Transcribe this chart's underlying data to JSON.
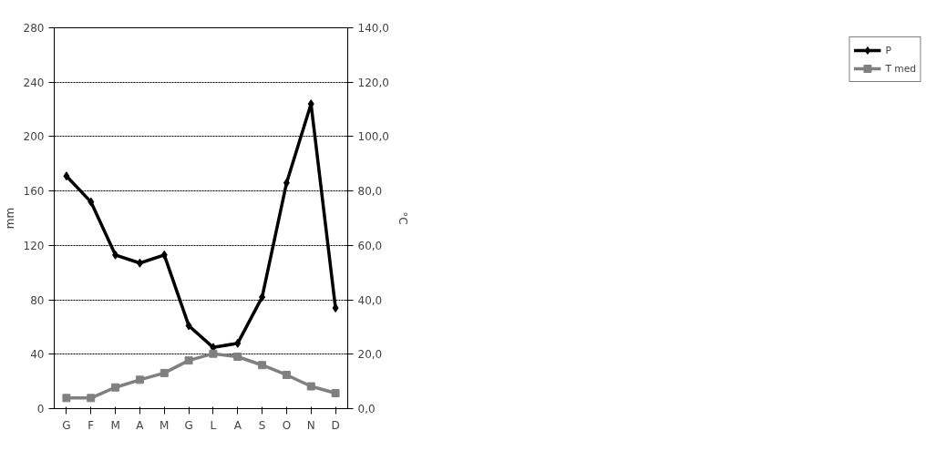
{
  "chart_data": {
    "type": "line",
    "ylabel": "mm",
    "y2label": "°C",
    "categories": [
      "G",
      "F",
      "M",
      "A",
      "M",
      "G",
      "L",
      "A",
      "S",
      "O",
      "N",
      "D"
    ],
    "series": [
      {
        "name": "P",
        "color": "#000000",
        "marker": "diamond",
        "values": [
          171,
          152,
          113,
          107,
          113,
          61,
          45,
          48,
          82,
          166,
          224,
          74
        ]
      },
      {
        "name": "T med",
        "color": "#808080",
        "marker": "square",
        "axis": "y2",
        "values": [
          3.9,
          3.9,
          7.8,
          10.6,
          13.1,
          17.7,
          20.2,
          19.1,
          16.0,
          12.4,
          8.2,
          5.7
        ]
      }
    ],
    "ylim": [
      0,
      280
    ],
    "yticks": [
      0,
      40,
      80,
      120,
      160,
      200,
      240,
      280
    ],
    "y2lim": [
      0,
      140
    ],
    "y2ticks": [
      {
        "value": 0,
        "label": "0,0"
      },
      {
        "value": 20,
        "label": "20,0"
      },
      {
        "value": 40,
        "label": "40,0"
      },
      {
        "value": 60,
        "label": "60,0"
      },
      {
        "value": 80,
        "label": "80,0"
      },
      {
        "value": 100,
        "label": "100,0"
      },
      {
        "value": 120,
        "label": "120,0"
      },
      {
        "value": 140,
        "label": "140,0"
      }
    ],
    "grid": "y",
    "legend": "right",
    "line_style": "solid"
  }
}
